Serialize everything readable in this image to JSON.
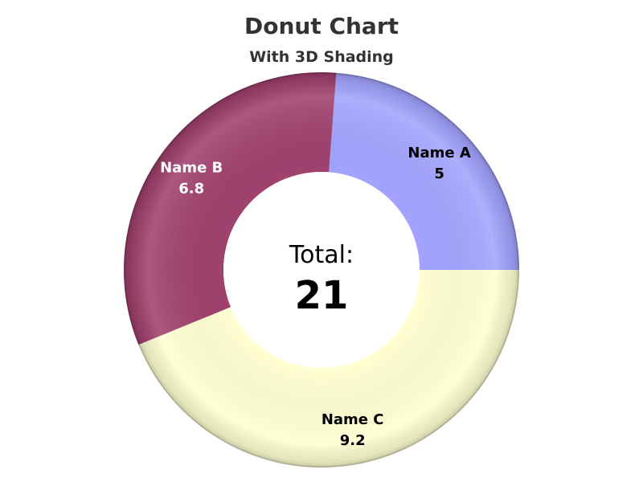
{
  "chart_data": {
    "type": "pie",
    "title": "Donut Chart",
    "subtitle": "With 3D Shading",
    "categories": [
      "Name A",
      "Name B",
      "Name C"
    ],
    "values": [
      5,
      6.8,
      9.2
    ],
    "value_labels": [
      "5",
      "6.8",
      "9.2"
    ],
    "colors": [
      "#a3a3ff",
      "#a0416e",
      "#ffffd2"
    ],
    "label_colors": [
      "#000000",
      "#ffffff",
      "#000000"
    ],
    "donut": true,
    "center_label": "Total:",
    "center_value": "21",
    "legend": "none"
  }
}
